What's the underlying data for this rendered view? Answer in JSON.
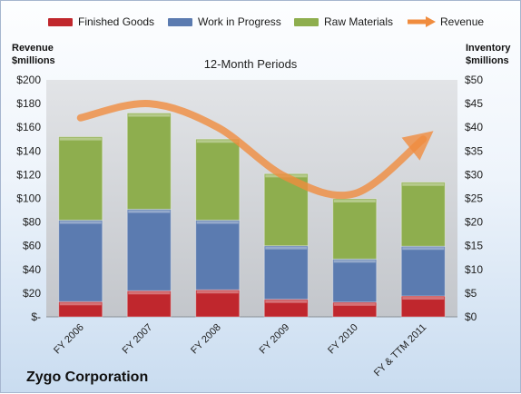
{
  "chart_data": {
    "type": "bar",
    "stacked": true,
    "title": "12-Month Periods",
    "company": "Zygo Corporation",
    "ylabel_left": "Revenue $millions",
    "ylabel_right": "Inventory $millions",
    "categories": [
      "FY 2006",
      "FY 2007",
      "FY 2008",
      "FY 2009",
      "FY 2010",
      "FY & TTM 2011"
    ],
    "series": [
      {
        "name": "Finished Goods",
        "axis": "right",
        "color": "#c0272d",
        "values": [
          3.2,
          5.5,
          5.7,
          3.7,
          3.1,
          4.4
        ]
      },
      {
        "name": "Work in Progress",
        "axis": "right",
        "color": "#5b7bb0",
        "values": [
          17.2,
          17.2,
          14.7,
          11.3,
          9.1,
          10.5
        ]
      },
      {
        "name": "Raw Materials",
        "axis": "right",
        "color": "#8eae4e",
        "values": [
          17.6,
          20.3,
          17.1,
          15.2,
          12.7,
          13.5
        ]
      },
      {
        "name": "Revenue",
        "axis": "left",
        "type": "line",
        "color": "#f08c3e",
        "values": [
          168,
          180,
          160,
          118,
          104,
          150
        ]
      }
    ],
    "ylim_left": [
      0,
      200
    ],
    "ylim_right": [
      0,
      50
    ],
    "yticks_left": [
      "$-",
      "$20",
      "$40",
      "$60",
      "$80",
      "$100",
      "$120",
      "$140",
      "$160",
      "$180",
      "$200"
    ],
    "yticks_right": [
      "$0",
      "$5",
      "$10",
      "$15",
      "$20",
      "$25",
      "$30",
      "$35",
      "$40",
      "$45",
      "$50"
    ],
    "legend_position": "top",
    "grid": false
  }
}
